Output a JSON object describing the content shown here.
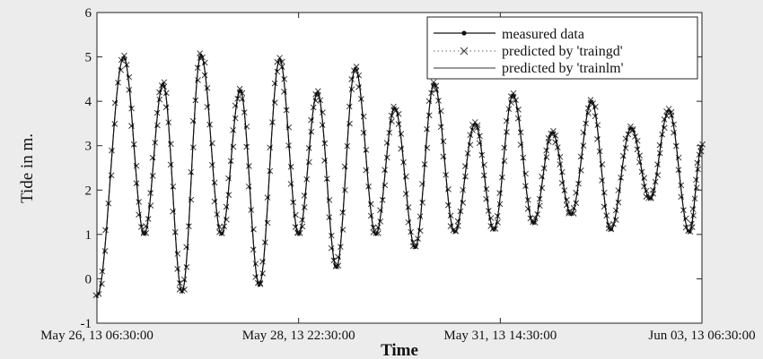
{
  "chart_data": {
    "type": "line",
    "title": "",
    "xlabel": "Time",
    "ylabel": "Tide in m.",
    "x_tick_labels": [
      "May 26, 13 06:30:00",
      "May 28, 13 22:30:00",
      "May 31, 13 14:30:00",
      "Jun 03, 13 06:30:00"
    ],
    "x_tick_values": [
      "2013-05-26 06:30",
      "2013-05-28 22:30",
      "2013-05-31 14:30",
      "2013-06-03 06:30"
    ],
    "xlim": [
      "2013-05-26 06:30",
      "2013-06-03 06:30"
    ],
    "ylim": [
      -1,
      6
    ],
    "y_ticks": [
      -1,
      0,
      1,
      2,
      3,
      4,
      5,
      6
    ],
    "grid": false,
    "legend_position": "top-right",
    "extrema": [
      {
        "t": "2013-05-26 06:30",
        "y": -0.4
      },
      {
        "t": "2013-05-26 15:00",
        "y": 5.0
      },
      {
        "t": "2013-05-26 21:30",
        "y": 1.0
      },
      {
        "t": "2013-05-27 03:30",
        "y": 4.4
      },
      {
        "t": "2013-05-27 09:30",
        "y": -0.3
      },
      {
        "t": "2013-05-27 15:30",
        "y": 5.05
      },
      {
        "t": "2013-05-27 22:00",
        "y": 1.0
      },
      {
        "t": "2013-05-28 04:00",
        "y": 4.25
      },
      {
        "t": "2013-05-28 10:00",
        "y": -0.15
      },
      {
        "t": "2013-05-28 16:30",
        "y": 4.95
      },
      {
        "t": "2013-05-28 22:30",
        "y": 1.0
      },
      {
        "t": "2013-05-29 04:30",
        "y": 4.2
      },
      {
        "t": "2013-05-29 10:30",
        "y": 0.25
      },
      {
        "t": "2013-05-29 16:30",
        "y": 4.75
      },
      {
        "t": "2013-05-29 23:00",
        "y": 1.0
      },
      {
        "t": "2013-05-30 05:00",
        "y": 3.85
      },
      {
        "t": "2013-05-30 11:30",
        "y": 0.7
      },
      {
        "t": "2013-05-30 17:30",
        "y": 4.4
      },
      {
        "t": "2013-05-31 00:00",
        "y": 1.05
      },
      {
        "t": "2013-05-31 06:30",
        "y": 3.5
      },
      {
        "t": "2013-05-31 12:30",
        "y": 1.1
      },
      {
        "t": "2013-05-31 18:30",
        "y": 4.15
      },
      {
        "t": "2013-06-01 01:00",
        "y": 1.25
      },
      {
        "t": "2013-06-01 07:00",
        "y": 3.3
      },
      {
        "t": "2013-06-01 13:00",
        "y": 1.45
      },
      {
        "t": "2013-06-01 19:30",
        "y": 4.0
      },
      {
        "t": "2013-06-02 01:30",
        "y": 1.1
      },
      {
        "t": "2013-06-02 08:00",
        "y": 3.4
      },
      {
        "t": "2013-06-02 14:00",
        "y": 1.8
      },
      {
        "t": "2013-06-02 20:00",
        "y": 3.8
      },
      {
        "t": "2013-06-03 02:30",
        "y": 1.05
      },
      {
        "t": "2013-06-03 06:30",
        "y": 3.0
      }
    ],
    "series": [
      {
        "name": "measured data",
        "color": "#111111",
        "line": "solid",
        "marker": "dot"
      },
      {
        "name": "predicted by 'traingd'",
        "color": "#444444",
        "line": "dotted",
        "marker": "x"
      },
      {
        "name": "predicted by 'trainlm'",
        "color": "#333333",
        "line": "solid",
        "marker": "none"
      }
    ]
  }
}
